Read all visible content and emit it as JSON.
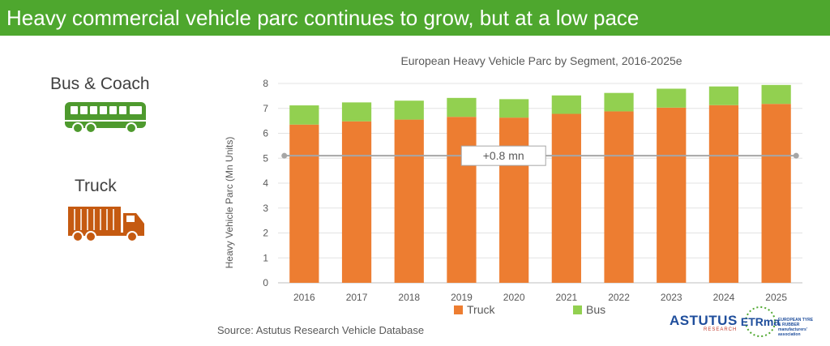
{
  "header": {
    "title": "Heavy commercial vehicle parc continues to grow, but at a low pace"
  },
  "segments": {
    "bus_label": "Bus & Coach",
    "truck_label": "Truck",
    "bus_icon": "bus-icon",
    "truck_icon": "truck-icon"
  },
  "colors": {
    "header_bg": "#4ea72e",
    "truck": "#ed7d31",
    "bus": "#92d050",
    "bus_icon": "#4e9a2e",
    "truck_icon": "#c55a11",
    "growth_line": "#a6a6a6"
  },
  "chart_data": {
    "type": "bar",
    "stacked": true,
    "title": "European Heavy Vehicle Parc by Segment, 2016-2025e",
    "xlabel": "",
    "ylabel": "Heavy Vehicle Parc (Mn Units)",
    "ylim": [
      0,
      8
    ],
    "yticks": [
      0,
      1,
      2,
      3,
      4,
      5,
      6,
      7,
      8
    ],
    "grid": true,
    "legend": "bottom",
    "categories": [
      "2016",
      "2017",
      "2018",
      "2019",
      "2020",
      "2021",
      "2022",
      "2023",
      "2024",
      "2025"
    ],
    "series": [
      {
        "name": "Truck",
        "values": [
          6.35,
          6.48,
          6.55,
          6.66,
          6.63,
          6.78,
          6.88,
          7.03,
          7.13,
          7.18
        ]
      },
      {
        "name": "Bus",
        "values": [
          0.77,
          0.76,
          0.76,
          0.76,
          0.74,
          0.74,
          0.74,
          0.76,
          0.75,
          0.76
        ]
      }
    ],
    "annotation": {
      "text": "+0.8 mn",
      "from": "2016",
      "to": "2025",
      "y": 5.1
    }
  },
  "footer": {
    "source": "Source: Astutus Research Vehicle Database",
    "logo_astutus": "ASTUTUS",
    "logo_astutus_sub": "RESEARCH",
    "logo_etrma": "ETRma",
    "logo_etrma_sub": "EUROPEAN TYRE & RUBBER manufacturers' association"
  }
}
